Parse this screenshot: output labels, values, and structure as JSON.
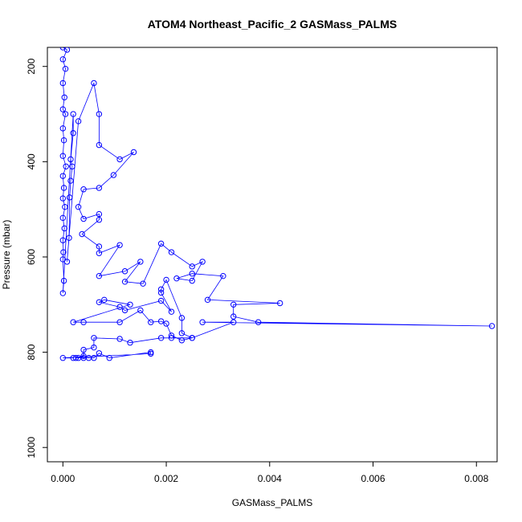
{
  "chart_data": {
    "type": "scatter",
    "title": "ATOM4 Northeast_Pacific_2 GASMass_PALMS",
    "xlabel": "GASMass_PALMS",
    "ylabel": "Pressure (mbar)",
    "xlim": [
      -0.0003,
      0.0084
    ],
    "ylim": [
      1030,
      160
    ],
    "y_reversed": true,
    "x_ticks": [
      0.0,
      0.002,
      0.004,
      0.006,
      0.008
    ],
    "x_tick_labels": [
      "0.000",
      "0.002",
      "0.004",
      "0.006",
      "0.008"
    ],
    "y_ticks": [
      200,
      400,
      600,
      800,
      1000
    ],
    "y_tick_labels": [
      "200",
      "400",
      "600",
      "800",
      "1000"
    ],
    "grid": false,
    "legend": "none",
    "style": {
      "line_color": "#0000ff",
      "marker": "open-circle",
      "connected": true
    },
    "series": [
      {
        "points": [
          [
            0.0,
            160
          ],
          [
            8e-05,
            165
          ],
          [
            0.0,
            185
          ],
          [
            5e-05,
            205
          ],
          [
            0.0,
            235
          ],
          [
            3e-05,
            265
          ],
          [
            0.0,
            290
          ],
          [
            5e-05,
            300
          ],
          [
            0.0,
            330
          ],
          [
            2e-05,
            355
          ],
          [
            0.0,
            388
          ],
          [
            6e-05,
            410
          ],
          [
            0.0,
            430
          ],
          [
            2e-05,
            455
          ],
          [
            0.0,
            477
          ],
          [
            4e-05,
            495
          ],
          [
            0.0,
            518
          ],
          [
            3e-05,
            540
          ],
          [
            0.0,
            565
          ],
          [
            1e-05,
            590
          ],
          [
            0.0,
            605
          ],
          [
            2e-05,
            650
          ],
          [
            0.0,
            676
          ],
          [
            0.0002,
            300
          ],
          [
            0.0002,
            340
          ],
          [
            0.00015,
            395
          ],
          [
            0.00018,
            410
          ],
          [
            0.00015,
            440
          ],
          [
            0.00013,
            475
          ],
          [
            0.00012,
            560
          ],
          [
            8e-05,
            610
          ],
          [
            0.0003,
            315
          ],
          [
            0.0006,
            235
          ],
          [
            0.0007,
            300
          ],
          [
            0.0007,
            365
          ],
          [
            0.0011,
            395
          ],
          [
            0.00137,
            380
          ],
          [
            0.00098,
            428
          ],
          [
            0.0007,
            455
          ],
          [
            0.0004,
            458
          ],
          [
            0.0003,
            495
          ],
          [
            0.0004,
            520
          ],
          [
            0.0007,
            510
          ],
          [
            0.0007,
            522
          ],
          [
            0.00037,
            552
          ],
          [
            0.0007,
            578
          ],
          [
            0.0007,
            592
          ],
          [
            0.0011,
            575
          ],
          [
            0.0007,
            640
          ],
          [
            0.0012,
            630
          ],
          [
            0.0015,
            610
          ],
          [
            0.0012,
            652
          ],
          [
            0.00155,
            656
          ],
          [
            0.0019,
            572
          ],
          [
            0.0021,
            590
          ],
          [
            0.0025,
            620
          ],
          [
            0.0027,
            610
          ],
          [
            0.0025,
            650
          ],
          [
            0.0022,
            645
          ],
          [
            0.0025,
            635
          ],
          [
            0.0031,
            640
          ],
          [
            0.0028,
            690
          ],
          [
            0.0042,
            697
          ],
          [
            0.0033,
            700
          ],
          [
            0.0033,
            725
          ],
          [
            0.00378,
            737
          ],
          [
            0.0083,
            745
          ],
          [
            0.0027,
            737
          ],
          [
            0.0033,
            737
          ],
          [
            0.0025,
            770
          ],
          [
            0.0023,
            775
          ],
          [
            0.0021,
            765
          ],
          [
            0.002,
            740
          ],
          [
            0.0019,
            735
          ],
          [
            0.0017,
            737
          ],
          [
            0.0015,
            712
          ],
          [
            0.0011,
            737
          ],
          [
            0.0004,
            737
          ],
          [
            0.0002,
            737
          ],
          [
            0.0013,
            700
          ],
          [
            0.0008,
            690
          ],
          [
            0.0007,
            695
          ],
          [
            0.0011,
            705
          ],
          [
            0.0012,
            712
          ],
          [
            0.0019,
            692
          ],
          [
            0.0021,
            715
          ],
          [
            0.0019,
            675
          ],
          [
            0.0019,
            668
          ],
          [
            0.002,
            648
          ],
          [
            0.0023,
            728
          ],
          [
            0.0023,
            760
          ],
          [
            0.0025,
            770
          ],
          [
            0.0021,
            770
          ],
          [
            0.0019,
            770
          ],
          [
            0.0013,
            780
          ],
          [
            0.0011,
            772
          ],
          [
            0.0006,
            770
          ],
          [
            0.0006,
            790
          ],
          [
            0.0004,
            795
          ],
          [
            0.0004,
            808
          ],
          [
            0.00025,
            812
          ],
          [
            0.0003,
            812
          ],
          [
            0.0004,
            812
          ],
          [
            0.0005,
            812
          ],
          [
            0.0006,
            812
          ],
          [
            0.0007,
            802
          ],
          [
            0.0009,
            812
          ],
          [
            0.0017,
            800
          ],
          [
            0.0017,
            803
          ],
          [
            0.0,
            812
          ],
          [
            0.0002,
            812
          ]
        ]
      }
    ]
  }
}
